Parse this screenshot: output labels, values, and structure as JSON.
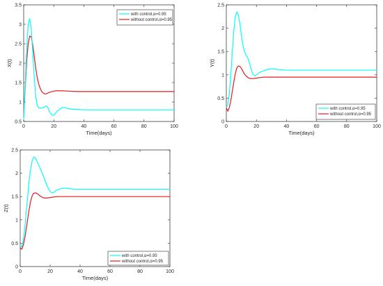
{
  "chart_data": [
    {
      "type": "line",
      "xlabel": "Time(days)",
      "ylabel": "X(t)",
      "xlim": [
        0,
        100
      ],
      "ylim": [
        0.5,
        3.5
      ],
      "xticks": [
        "0",
        "20",
        "40",
        "60",
        "80",
        "100"
      ],
      "yticks": [
        "0.5",
        "1",
        "1.5",
        "2",
        "2.5",
        "3",
        "3.5"
      ],
      "legend_position": "top-right",
      "series": [
        {
          "name": "with control,α=0.95",
          "color": "#00ffff",
          "x": [
            0,
            1,
            2,
            3,
            4,
            5,
            6,
            7,
            8,
            9,
            10,
            11,
            12,
            13,
            14,
            15,
            16,
            17,
            18,
            19,
            20,
            21,
            22,
            23,
            24,
            25,
            26,
            28,
            30,
            33,
            36,
            40,
            45,
            50,
            60,
            70,
            80,
            90,
            100
          ],
          "y": [
            0.55,
            1.45,
            2.35,
            3.0,
            3.15,
            2.9,
            2.3,
            1.65,
            1.15,
            0.92,
            0.85,
            0.84,
            0.85,
            0.86,
            0.88,
            0.9,
            0.86,
            0.77,
            0.7,
            0.66,
            0.66,
            0.7,
            0.75,
            0.79,
            0.82,
            0.84,
            0.86,
            0.85,
            0.83,
            0.81,
            0.81,
            0.8,
            0.8,
            0.8,
            0.8,
            0.8,
            0.8,
            0.8,
            0.8
          ]
        },
        {
          "name": "without control,α=0.95",
          "color": "#e31a1c",
          "x": [
            0,
            1,
            2,
            3,
            4,
            5,
            6,
            7,
            8,
            9,
            10,
            11,
            12,
            13,
            14,
            15,
            16,
            18,
            20,
            22,
            25,
            30,
            35,
            40,
            50,
            60,
            70,
            80,
            90,
            100
          ],
          "y": [
            0.6,
            1.35,
            2.05,
            2.5,
            2.7,
            2.68,
            2.48,
            2.18,
            1.88,
            1.63,
            1.46,
            1.35,
            1.27,
            1.23,
            1.21,
            1.21,
            1.23,
            1.26,
            1.28,
            1.29,
            1.29,
            1.28,
            1.27,
            1.27,
            1.27,
            1.27,
            1.27,
            1.27,
            1.27,
            1.27
          ]
        }
      ]
    },
    {
      "type": "line",
      "xlabel": "Time(days)",
      "ylabel": "Y(t)",
      "xlim": [
        0,
        100
      ],
      "ylim": [
        0,
        2.5
      ],
      "xticks": [
        "0",
        "20",
        "40",
        "60",
        "80",
        "100"
      ],
      "yticks": [
        "0",
        "0.5",
        "1",
        "1.5",
        "2",
        "2.5"
      ],
      "legend_position": "bottom-right",
      "series": [
        {
          "name": "with control,α=0.95",
          "color": "#00ffff",
          "x": [
            0,
            1,
            2,
            3,
            4,
            5,
            6,
            7,
            8,
            9,
            10,
            11,
            12,
            13,
            14,
            15,
            16,
            17,
            18,
            19,
            20,
            22,
            25,
            28,
            30,
            33,
            36,
            40,
            45,
            50,
            60,
            70,
            80,
            90,
            100
          ],
          "y": [
            0.3,
            0.35,
            0.6,
            1.0,
            1.5,
            1.95,
            2.25,
            2.35,
            2.28,
            2.1,
            1.85,
            1.65,
            1.5,
            1.43,
            1.38,
            1.3,
            1.18,
            1.06,
            1.0,
            0.98,
            1.0,
            1.05,
            1.09,
            1.12,
            1.13,
            1.12,
            1.11,
            1.1,
            1.1,
            1.1,
            1.1,
            1.1,
            1.1,
            1.1,
            1.1
          ]
        },
        {
          "name": "without control,α=0.95",
          "color": "#e31a1c",
          "x": [
            0,
            1,
            2,
            3,
            4,
            5,
            6,
            7,
            8,
            9,
            10,
            11,
            12,
            13,
            14,
            15,
            16,
            18,
            20,
            22,
            25,
            30,
            40,
            50,
            60,
            70,
            80,
            90,
            100
          ],
          "y": [
            0.3,
            0.22,
            0.3,
            0.45,
            0.65,
            0.85,
            1.03,
            1.15,
            1.19,
            1.18,
            1.14,
            1.08,
            1.02,
            0.98,
            0.95,
            0.93,
            0.92,
            0.92,
            0.93,
            0.94,
            0.95,
            0.95,
            0.95,
            0.95,
            0.95,
            0.95,
            0.95,
            0.95,
            0.95
          ]
        }
      ]
    },
    {
      "type": "line",
      "xlabel": "Time(days)",
      "ylabel": "Z(t)",
      "xlim": [
        0,
        100
      ],
      "ylim": [
        0,
        2.5
      ],
      "xticks": [
        "0",
        "20",
        "40",
        "60",
        "80",
        "100"
      ],
      "yticks": [
        "0",
        "0.5",
        "1",
        "1.5",
        "2",
        "2.5"
      ],
      "legend_position": "bottom-right",
      "series": [
        {
          "name": "with control,α=0.95",
          "color": "#00ffff",
          "x": [
            0,
            1,
            2,
            3,
            4,
            5,
            6,
            7,
            8,
            9,
            10,
            11,
            12,
            13,
            14,
            15,
            16,
            17,
            18,
            19,
            20,
            21,
            22,
            23,
            24,
            26,
            28,
            30,
            33,
            36,
            40,
            45,
            50,
            60,
            70,
            80,
            90,
            100
          ],
          "y": [
            0.45,
            0.42,
            0.55,
            0.8,
            1.15,
            1.5,
            1.85,
            2.1,
            2.27,
            2.35,
            2.33,
            2.27,
            2.2,
            2.13,
            2.06,
            1.98,
            1.9,
            1.81,
            1.73,
            1.66,
            1.61,
            1.58,
            1.58,
            1.6,
            1.63,
            1.66,
            1.68,
            1.68,
            1.67,
            1.66,
            1.66,
            1.66,
            1.66,
            1.66,
            1.66,
            1.66,
            1.66,
            1.66
          ]
        },
        {
          "name": "without control,α=0.95",
          "color": "#e31a1c",
          "x": [
            0,
            1,
            2,
            3,
            4,
            5,
            6,
            7,
            8,
            9,
            10,
            11,
            12,
            13,
            14,
            15,
            16,
            18,
            20,
            22,
            25,
            30,
            35,
            40,
            50,
            60,
            70,
            80,
            90,
            100
          ],
          "y": [
            0.4,
            0.37,
            0.45,
            0.6,
            0.8,
            1.02,
            1.23,
            1.4,
            1.52,
            1.57,
            1.58,
            1.57,
            1.55,
            1.52,
            1.5,
            1.48,
            1.47,
            1.47,
            1.48,
            1.49,
            1.5,
            1.5,
            1.5,
            1.5,
            1.5,
            1.5,
            1.5,
            1.5,
            1.5,
            1.5
          ]
        }
      ]
    }
  ]
}
